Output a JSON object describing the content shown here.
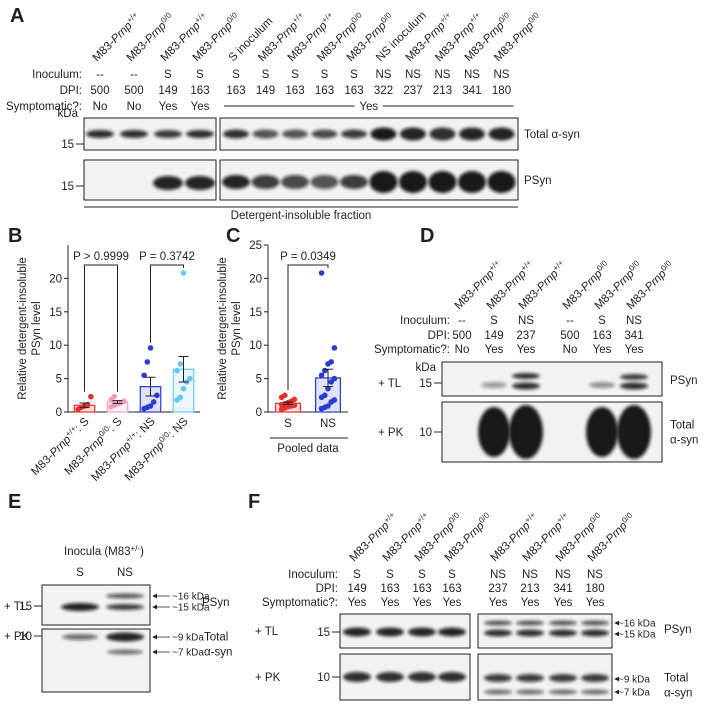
{
  "panel_labels": [
    "A",
    "B",
    "C",
    "D",
    "E",
    "F"
  ],
  "panel_a": {
    "headers": [
      {
        "prefix": "M83-",
        "gene": "Prnp",
        "sup": "+/+",
        "color": "#231f20"
      },
      {
        "prefix": "M83-",
        "gene": "Prnp",
        "sup": "0/0",
        "color": "#8c8c8c"
      },
      {
        "prefix": "M83-",
        "gene": "Prnp",
        "sup": "+/+",
        "color": "#e3262a"
      },
      {
        "prefix": "M83-",
        "gene": "Prnp",
        "sup": "0/0",
        "color": "#f2a7c3"
      },
      {
        "prefix": "S inoculum",
        "color": "#231f20"
      },
      {
        "prefix": "M83-",
        "gene": "Prnp",
        "sup": "+/+",
        "color": "#e3262a"
      },
      {
        "prefix": "M83-",
        "gene": "Prnp",
        "sup": "+/+",
        "color": "#e3262a"
      },
      {
        "prefix": "M83-",
        "gene": "Prnp",
        "sup": "0/0",
        "color": "#f2a7c3"
      },
      {
        "prefix": "M83-",
        "gene": "Prnp",
        "sup": "0/0",
        "color": "#f2a7c3"
      },
      {
        "prefix": "NS inoculum",
        "color": "#231f20"
      },
      {
        "prefix": "M83-",
        "gene": "Prnp",
        "sup": "+/+",
        "color": "#2a2fc8"
      },
      {
        "prefix": "M83-",
        "gene": "Prnp",
        "sup": "+/+",
        "color": "#2a2fc8"
      },
      {
        "prefix": "M83-",
        "gene": "Prnp",
        "sup": "0/0",
        "color": "#2cb5d9"
      },
      {
        "prefix": "M83-",
        "gene": "Prnp",
        "sup": "0/0",
        "color": "#2cb5d9"
      }
    ],
    "row_labels": [
      "Inoculum:",
      "DPI:",
      "Symptomatic?:"
    ],
    "inoculum": [
      "--",
      "--",
      "S",
      "S",
      "S",
      "S",
      "S",
      "S",
      "S",
      "NS",
      "NS",
      "NS",
      "NS",
      "NS"
    ],
    "dpi": [
      500,
      500,
      149,
      163,
      163,
      149,
      163,
      163,
      163,
      322,
      237,
      213,
      341,
      180
    ],
    "symptomatic": [
      "No",
      "No",
      "Yes",
      "Yes"
    ],
    "symptomatic_span": "Yes",
    "kda": "kDa",
    "markers": [
      15,
      15
    ],
    "blot_labels": [
      "Total α-syn",
      "PSyn"
    ],
    "fraction": "Detergent-insoluble fraction"
  },
  "chart_data": [
    {
      "type": "bar",
      "ylabel": [
        "Relative detergent-insoluble",
        "PSyn level"
      ],
      "categories": [
        {
          "prefix": "M83-",
          "gene": "Prnp",
          "sup": "+/+",
          "suffix": ": S"
        },
        {
          "prefix": "M83-",
          "gene": "Prnp",
          "sup": "0/0",
          "suffix": ": S"
        },
        {
          "prefix": "M83-",
          "gene": "Prnp",
          "sup": "+/+",
          "suffix": ": NS"
        },
        {
          "prefix": "M83-",
          "gene": "Prnp",
          "sup": "0/0",
          "suffix": ": NS"
        }
      ],
      "values": [
        1.0,
        1.5,
        3.8,
        6.4
      ],
      "errors": [
        0.35,
        0.2,
        1.4,
        1.9
      ],
      "colors": [
        "#e8302c",
        "#f19ec0",
        "#2a3bd0",
        "#6cc7ee"
      ],
      "points": [
        [
          0.4,
          0.7,
          0.9,
          1.1,
          2.3
        ],
        [
          0.8,
          1.0,
          1.2,
          1.4,
          1.6,
          1.9,
          2.3
        ],
        [
          0.5,
          0.7,
          0.9,
          1.5,
          2.5,
          5.5,
          7.5,
          9.6
        ],
        [
          1.8,
          2.2,
          3.5,
          4.5,
          5.0,
          6.2,
          7.2,
          20.8
        ]
      ],
      "ylim": [
        0,
        25
      ],
      "yticks": [
        0,
        5,
        10,
        15,
        20
      ],
      "annotations": [
        "P > 0.9999",
        "P = 0.3742"
      ]
    },
    {
      "type": "bar",
      "ylabel": [
        "Relative detergent-insoluble",
        "PSyn level"
      ],
      "categories": [
        "S",
        "NS"
      ],
      "values": [
        1.3,
        5.1
      ],
      "errors": [
        0.18,
        1.3
      ],
      "colors": [
        "#e8302c",
        "#2a3bd0"
      ],
      "points": [
        [
          0.4,
          0.6,
          0.8,
          0.9,
          1.0,
          1.1,
          1.2,
          1.4,
          1.6,
          1.9,
          2.2,
          2.5
        ],
        [
          0.5,
          0.7,
          0.9,
          1.5,
          1.8,
          2.2,
          2.5,
          3.5,
          4.5,
          5.0,
          5.5,
          6.2,
          7.2,
          7.5,
          9.6,
          20.8
        ]
      ],
      "ylim": [
        0,
        25
      ],
      "yticks": [
        0,
        5,
        10,
        15,
        20,
        25
      ],
      "annotations": [
        "P = 0.0349"
      ],
      "xlabel": "Pooled data"
    }
  ],
  "panel_d": {
    "headers": [
      {
        "prefix": "M83-",
        "gene": "Prnp",
        "sup": "+/+",
        "color": "#231f20"
      },
      {
        "prefix": "M83-",
        "gene": "Prnp",
        "sup": "+/+",
        "color": "#e3262a"
      },
      {
        "prefix": "M83-",
        "gene": "Prnp",
        "sup": "+/+",
        "color": "#2a2fc8"
      },
      {
        "prefix": "M83-",
        "gene": "Prnp",
        "sup": "0/0",
        "color": "#8c8c8c"
      },
      {
        "prefix": "M83-",
        "gene": "Prnp",
        "sup": "0/0",
        "color": "#f2a7c3"
      },
      {
        "prefix": "M83-",
        "gene": "Prnp",
        "sup": "0/0",
        "color": "#2cb5d9"
      }
    ],
    "row_labels": [
      "Inoculum:",
      "DPI:",
      "Symptomatic?:"
    ],
    "inoculum": [
      "--",
      "S",
      "NS",
      "--",
      "S",
      "NS"
    ],
    "dpi": [
      500,
      149,
      237,
      500,
      163,
      341
    ],
    "symptomatic": [
      "No",
      "Yes",
      "Yes",
      "No",
      "Yes",
      "Yes"
    ],
    "kda": "kDa",
    "markers": [
      15,
      10
    ],
    "conditions": [
      "+ TL",
      "+ PK"
    ],
    "blot_labels": [
      [
        "PSyn"
      ],
      [
        "Total",
        "α-syn"
      ]
    ]
  },
  "panel_e": {
    "title": {
      "prefix": "Inocula (M83",
      "sup": "+/-",
      "suffix": ")"
    },
    "lanes": [
      "S",
      "NS"
    ],
    "conditions": [
      "+ TL",
      "+ PK"
    ],
    "markers": [
      15,
      10
    ],
    "sizes": [
      [
        "~16 kDa",
        "~15 kDa"
      ],
      [
        "~9 kDa",
        "~7 kDa"
      ]
    ],
    "blot_labels": [
      [
        "PSyn"
      ],
      [
        "Total",
        "α-syn"
      ]
    ]
  },
  "panel_f": {
    "headers": [
      {
        "prefix": "M83-",
        "gene": "Prnp",
        "sup": "+/+",
        "color": "#e3262a"
      },
      {
        "prefix": "M83-",
        "gene": "Prnp",
        "sup": "+/+",
        "color": "#e3262a"
      },
      {
        "prefix": "M83-",
        "gene": "Prnp",
        "sup": "0/0",
        "color": "#f2a7c3"
      },
      {
        "prefix": "M83-",
        "gene": "Prnp",
        "sup": "0/0",
        "color": "#f2a7c3"
      },
      {
        "prefix": "M83-",
        "gene": "Prnp",
        "sup": "+/+",
        "color": "#2a2fc8"
      },
      {
        "prefix": "M83-",
        "gene": "Prnp",
        "sup": "+/+",
        "color": "#2a2fc8"
      },
      {
        "prefix": "M83-",
        "gene": "Prnp",
        "sup": "0/0",
        "color": "#2cb5d9"
      },
      {
        "prefix": "M83-",
        "gene": "Prnp",
        "sup": "0/0",
        "color": "#2cb5d9"
      }
    ],
    "row_labels": [
      "Inoculum:",
      "DPI:",
      "Symptomatic?:"
    ],
    "inoculum": [
      "S",
      "S",
      "S",
      "S",
      "NS",
      "NS",
      "NS",
      "NS"
    ],
    "dpi": [
      149,
      163,
      163,
      163,
      237,
      213,
      341,
      180
    ],
    "symptomatic": [
      "Yes",
      "Yes",
      "Yes",
      "Yes",
      "Yes",
      "Yes",
      "Yes",
      "Yes"
    ],
    "conditions": [
      "+ TL",
      "+ PK"
    ],
    "markers": [
      15,
      10
    ],
    "sizes": [
      [
        "~16 kDa",
        "~15 kDa"
      ],
      [
        "~9 kDa",
        "~7 kDa"
      ]
    ],
    "blot_labels": [
      [
        "PSyn"
      ],
      [
        "Total",
        "α-syn"
      ]
    ]
  }
}
